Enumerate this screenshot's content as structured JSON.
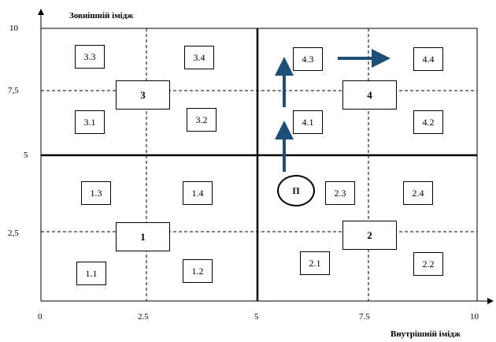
{
  "axes": {
    "y_title": "Зовнішній імідж",
    "x_title": "Внутрішній імідж",
    "y_ticks": [
      "10",
      "7,5",
      "5",
      "2,5"
    ],
    "x_ticks": [
      "0",
      "2.5",
      "5",
      "7.5",
      "10"
    ]
  },
  "quadrants": [
    "3",
    "4",
    "1",
    "2"
  ],
  "cells": [
    "3.3",
    "3.4",
    "4.3",
    "4.4",
    "3.1",
    "3.2",
    "4.1",
    "4.2",
    "1.3",
    "1.4",
    "2.3",
    "2.4",
    "1.1",
    "1.2",
    "2.1",
    "2.2"
  ],
  "marker": "П",
  "colors": {
    "arrow": "#1F4E79",
    "lines": "#000000"
  }
}
